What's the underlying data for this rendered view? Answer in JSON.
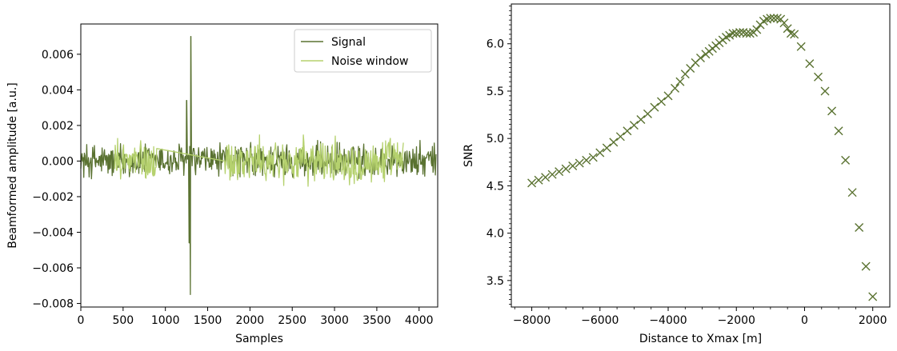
{
  "chart_data": [
    {
      "type": "line",
      "title": "",
      "xlabel": "Samples",
      "ylabel": "Beamformed amplitude [a.u.]",
      "xlim": [
        0,
        4220
      ],
      "ylim": [
        -0.0082,
        0.0077
      ],
      "xticks": [
        0,
        500,
        1000,
        1500,
        2000,
        2500,
        3000,
        3500,
        4000
      ],
      "yticks": [
        -0.008,
        -0.006,
        -0.004,
        -0.002,
        0.0,
        0.002,
        0.004,
        0.006
      ],
      "ytick_labels": [
        "−0.008",
        "−0.006",
        "−0.004",
        "−0.002",
        "0.000",
        "0.002",
        "0.004",
        "0.006"
      ],
      "legend_position": "top-right",
      "grid": false,
      "series": [
        {
          "name": "Signal",
          "color": "#5a7231",
          "description": "noise-like trace over all samples with a sharp pulse",
          "x_range": [
            0,
            4200
          ],
          "typical_amplitude": 0.0012,
          "pulse_peaks": [
            {
              "x": 1300,
              "y": 0.007
            },
            {
              "x": 1295,
              "y": -0.0075
            },
            {
              "x": 1250,
              "y": 0.0034
            },
            {
              "x": 1280,
              "y": -0.0046
            }
          ]
        },
        {
          "name": "Noise window",
          "color": "#b5d16e",
          "description": "noise-like trace with a bridging line across the pulse region",
          "segments": [
            [
              400,
              900
            ],
            [
              1700,
              3820
            ]
          ],
          "bridge": [
            [
              900,
              0.0007
            ],
            [
              1700,
              0.0
            ]
          ],
          "typical_amplitude": 0.0015
        }
      ]
    },
    {
      "type": "scatter",
      "title": "",
      "xlabel": "Distance to Xmax [m]",
      "ylabel": "SNR",
      "xlim": [
        -8600,
        2500
      ],
      "ylim": [
        3.22,
        6.42
      ],
      "xticks": [
        -8000,
        -6000,
        -4000,
        -2000,
        0,
        2000
      ],
      "xtick_labels": [
        "−8000",
        "−6000",
        "−4000",
        "−2000",
        "0",
        "2000"
      ],
      "yticks": [
        3.5,
        4.0,
        4.5,
        5.0,
        5.5,
        6.0
      ],
      "ytick_labels": [
        "3.5",
        "4.0",
        "4.5",
        "5.0",
        "5.5",
        "6.0"
      ],
      "marker": "x",
      "color": "#5a7231",
      "grid": false,
      "x": [
        -8000,
        -7800,
        -7600,
        -7400,
        -7200,
        -7000,
        -6800,
        -6600,
        -6400,
        -6200,
        -6000,
        -5800,
        -5600,
        -5400,
        -5200,
        -5000,
        -4800,
        -4600,
        -4400,
        -4200,
        -4000,
        -3800,
        -3650,
        -3500,
        -3350,
        -3200,
        -3050,
        -2900,
        -2800,
        -2700,
        -2600,
        -2500,
        -2400,
        -2300,
        -2200,
        -2100,
        -2000,
        -1900,
        -1800,
        -1700,
        -1600,
        -1500,
        -1400,
        -1300,
        -1200,
        -1100,
        -1000,
        -900,
        -800,
        -700,
        -600,
        -500,
        -400,
        -300,
        -100,
        150,
        400,
        600,
        800,
        1000,
        1200,
        1400,
        1600,
        1800,
        2000
      ],
      "y": [
        4.53,
        4.56,
        4.59,
        4.62,
        4.65,
        4.68,
        4.71,
        4.74,
        4.77,
        4.8,
        4.85,
        4.9,
        4.96,
        5.02,
        5.08,
        5.14,
        5.2,
        5.26,
        5.33,
        5.39,
        5.45,
        5.53,
        5.6,
        5.68,
        5.74,
        5.8,
        5.85,
        5.89,
        5.92,
        5.95,
        5.98,
        6.01,
        6.04,
        6.07,
        6.09,
        6.11,
        6.11,
        6.12,
        6.12,
        6.11,
        6.11,
        6.12,
        6.15,
        6.2,
        6.24,
        6.26,
        6.27,
        6.27,
        6.27,
        6.26,
        6.22,
        6.16,
        6.11,
        6.1,
        5.97,
        5.79,
        5.65,
        5.5,
        5.29,
        5.08,
        4.77,
        4.43,
        4.06,
        3.65,
        3.33
      ]
    }
  ]
}
